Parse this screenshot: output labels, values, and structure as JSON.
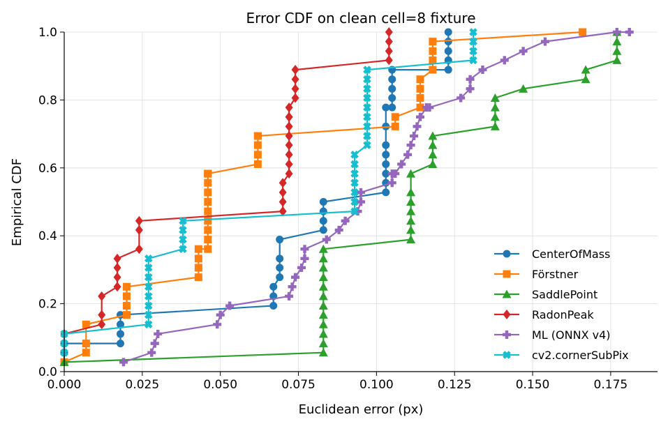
{
  "chart_data": {
    "type": "line",
    "title": "Error CDF on clean cell=8 fixture",
    "xlabel": "Euclidean error (px)",
    "ylabel": "Empirical CDF",
    "xlim": [
      0.0,
      0.19
    ],
    "ylim": [
      0.0,
      1.0
    ],
    "xticks": [
      "0.000",
      "0.025",
      "0.050",
      "0.075",
      "0.100",
      "0.125",
      "0.150",
      "0.175"
    ],
    "yticks": [
      "0.0",
      "0.2",
      "0.4",
      "0.6",
      "0.8",
      "1.0"
    ],
    "grid": true,
    "legend_position": "lower-right",
    "series": [
      {
        "name": "CenterOfMass",
        "color": "#1f77b4",
        "marker": "circle",
        "x": [
          0.0,
          0.0,
          0.0,
          0.018,
          0.018,
          0.018,
          0.018,
          0.067,
          0.067,
          0.067,
          0.069,
          0.069,
          0.069,
          0.069,
          0.083,
          0.083,
          0.083,
          0.083,
          0.103,
          0.103,
          0.103,
          0.103,
          0.103,
          0.103,
          0.103,
          0.103,
          0.105,
          0.105,
          0.105,
          0.105,
          0.105,
          0.123,
          0.123,
          0.123,
          0.123,
          0.123
        ],
        "y": [
          0.028,
          0.056,
          0.083,
          0.083,
          0.111,
          0.139,
          0.167,
          0.194,
          0.222,
          0.25,
          0.278,
          0.306,
          0.333,
          0.389,
          0.417,
          0.444,
          0.472,
          0.5,
          0.528,
          0.556,
          0.583,
          0.611,
          0.639,
          0.667,
          0.722,
          0.778,
          0.778,
          0.806,
          0.833,
          0.861,
          0.889,
          0.889,
          0.917,
          0.944,
          0.972,
          1.0
        ]
      },
      {
        "name": "Förstner",
        "color": "#ff7f0e",
        "marker": "square",
        "x": [
          0.0,
          0.007,
          0.007,
          0.007,
          0.02,
          0.02,
          0.02,
          0.02,
          0.043,
          0.043,
          0.043,
          0.043,
          0.046,
          0.046,
          0.046,
          0.046,
          0.046,
          0.046,
          0.046,
          0.046,
          0.046,
          0.046,
          0.046,
          0.062,
          0.062,
          0.062,
          0.062,
          0.062,
          0.106,
          0.106,
          0.114,
          0.114,
          0.114,
          0.114,
          0.118,
          0.118,
          0.118,
          0.118,
          0.166
        ],
        "y": [
          0.028,
          0.056,
          0.083,
          0.139,
          0.167,
          0.194,
          0.222,
          0.25,
          0.278,
          0.306,
          0.333,
          0.361,
          0.361,
          0.389,
          0.417,
          0.444,
          0.472,
          0.5,
          0.528,
          0.556,
          0.583,
          0.583,
          0.583,
          0.611,
          0.639,
          0.667,
          0.694,
          0.694,
          0.722,
          0.75,
          0.778,
          0.806,
          0.833,
          0.861,
          0.889,
          0.917,
          0.944,
          0.972,
          1.0
        ]
      },
      {
        "name": "SaddlePoint",
        "color": "#2ca02c",
        "marker": "triangle",
        "x": [
          0.0,
          0.083,
          0.083,
          0.083,
          0.083,
          0.083,
          0.083,
          0.083,
          0.083,
          0.083,
          0.083,
          0.083,
          0.083,
          0.111,
          0.111,
          0.111,
          0.111,
          0.111,
          0.111,
          0.111,
          0.118,
          0.118,
          0.118,
          0.118,
          0.138,
          0.138,
          0.138,
          0.138,
          0.147,
          0.167,
          0.167,
          0.177,
          0.177,
          0.177,
          0.177
        ],
        "y": [
          0.028,
          0.056,
          0.083,
          0.111,
          0.139,
          0.167,
          0.194,
          0.222,
          0.25,
          0.278,
          0.306,
          0.333,
          0.361,
          0.389,
          0.417,
          0.444,
          0.472,
          0.5,
          0.528,
          0.583,
          0.611,
          0.639,
          0.667,
          0.694,
          0.722,
          0.75,
          0.778,
          0.806,
          0.833,
          0.861,
          0.889,
          0.917,
          0.944,
          0.972,
          1.0
        ]
      },
      {
        "name": "RadonPeak",
        "color": "#d62728",
        "marker": "diamond",
        "x": [
          0.0,
          0.012,
          0.012,
          0.012,
          0.017,
          0.017,
          0.017,
          0.017,
          0.024,
          0.024,
          0.024,
          0.07,
          0.07,
          0.07,
          0.07,
          0.072,
          0.072,
          0.072,
          0.072,
          0.072,
          0.072,
          0.072,
          0.072,
          0.072,
          0.074,
          0.074,
          0.074,
          0.074,
          0.104,
          0.104,
          0.104,
          0.104
        ],
        "y": [
          0.111,
          0.139,
          0.167,
          0.222,
          0.25,
          0.278,
          0.306,
          0.333,
          0.361,
          0.417,
          0.444,
          0.472,
          0.5,
          0.528,
          0.556,
          0.583,
          0.611,
          0.639,
          0.667,
          0.694,
          0.722,
          0.75,
          0.75,
          0.778,
          0.806,
          0.833,
          0.861,
          0.889,
          0.917,
          0.944,
          0.972,
          1.0
        ]
      },
      {
        "name": "ML (ONNX v4)",
        "color": "#9467bd",
        "marker": "plus",
        "x": [
          0.019,
          0.028,
          0.029,
          0.029,
          0.03,
          0.049,
          0.05,
          0.053,
          0.072,
          0.073,
          0.074,
          0.076,
          0.077,
          0.077,
          0.084,
          0.088,
          0.09,
          0.094,
          0.095,
          0.095,
          0.105,
          0.105,
          0.106,
          0.108,
          0.11,
          0.111,
          0.112,
          0.113,
          0.114,
          0.116,
          0.117,
          0.127,
          0.13,
          0.13,
          0.134,
          0.141,
          0.147,
          0.154,
          0.177,
          0.181
        ],
        "y": [
          0.028,
          0.056,
          0.083,
          0.083,
          0.111,
          0.139,
          0.167,
          0.194,
          0.222,
          0.25,
          0.278,
          0.306,
          0.333,
          0.361,
          0.389,
          0.417,
          0.444,
          0.472,
          0.5,
          0.528,
          0.556,
          0.583,
          0.583,
          0.611,
          0.639,
          0.667,
          0.694,
          0.722,
          0.75,
          0.778,
          0.778,
          0.806,
          0.833,
          0.861,
          0.889,
          0.917,
          0.944,
          0.972,
          1.0,
          1.0
        ]
      },
      {
        "name": "cv2.cornerSubPix",
        "color": "#17becf",
        "marker": "x",
        "x": [
          0.0,
          0.0,
          0.0,
          0.027,
          0.027,
          0.027,
          0.027,
          0.027,
          0.027,
          0.027,
          0.027,
          0.038,
          0.038,
          0.038,
          0.038,
          0.093,
          0.093,
          0.093,
          0.093,
          0.093,
          0.093,
          0.093,
          0.097,
          0.097,
          0.097,
          0.097,
          0.097,
          0.097,
          0.097,
          0.097,
          0.097,
          0.131,
          0.131,
          0.131,
          0.131,
          0.131
        ],
        "y": [
          0.056,
          0.083,
          0.111,
          0.139,
          0.167,
          0.194,
          0.222,
          0.25,
          0.278,
          0.306,
          0.333,
          0.361,
          0.389,
          0.417,
          0.444,
          0.472,
          0.5,
          0.528,
          0.556,
          0.583,
          0.611,
          0.639,
          0.667,
          0.694,
          0.722,
          0.75,
          0.778,
          0.806,
          0.833,
          0.861,
          0.889,
          0.917,
          0.944,
          0.972,
          0.972,
          1.0
        ]
      }
    ]
  }
}
